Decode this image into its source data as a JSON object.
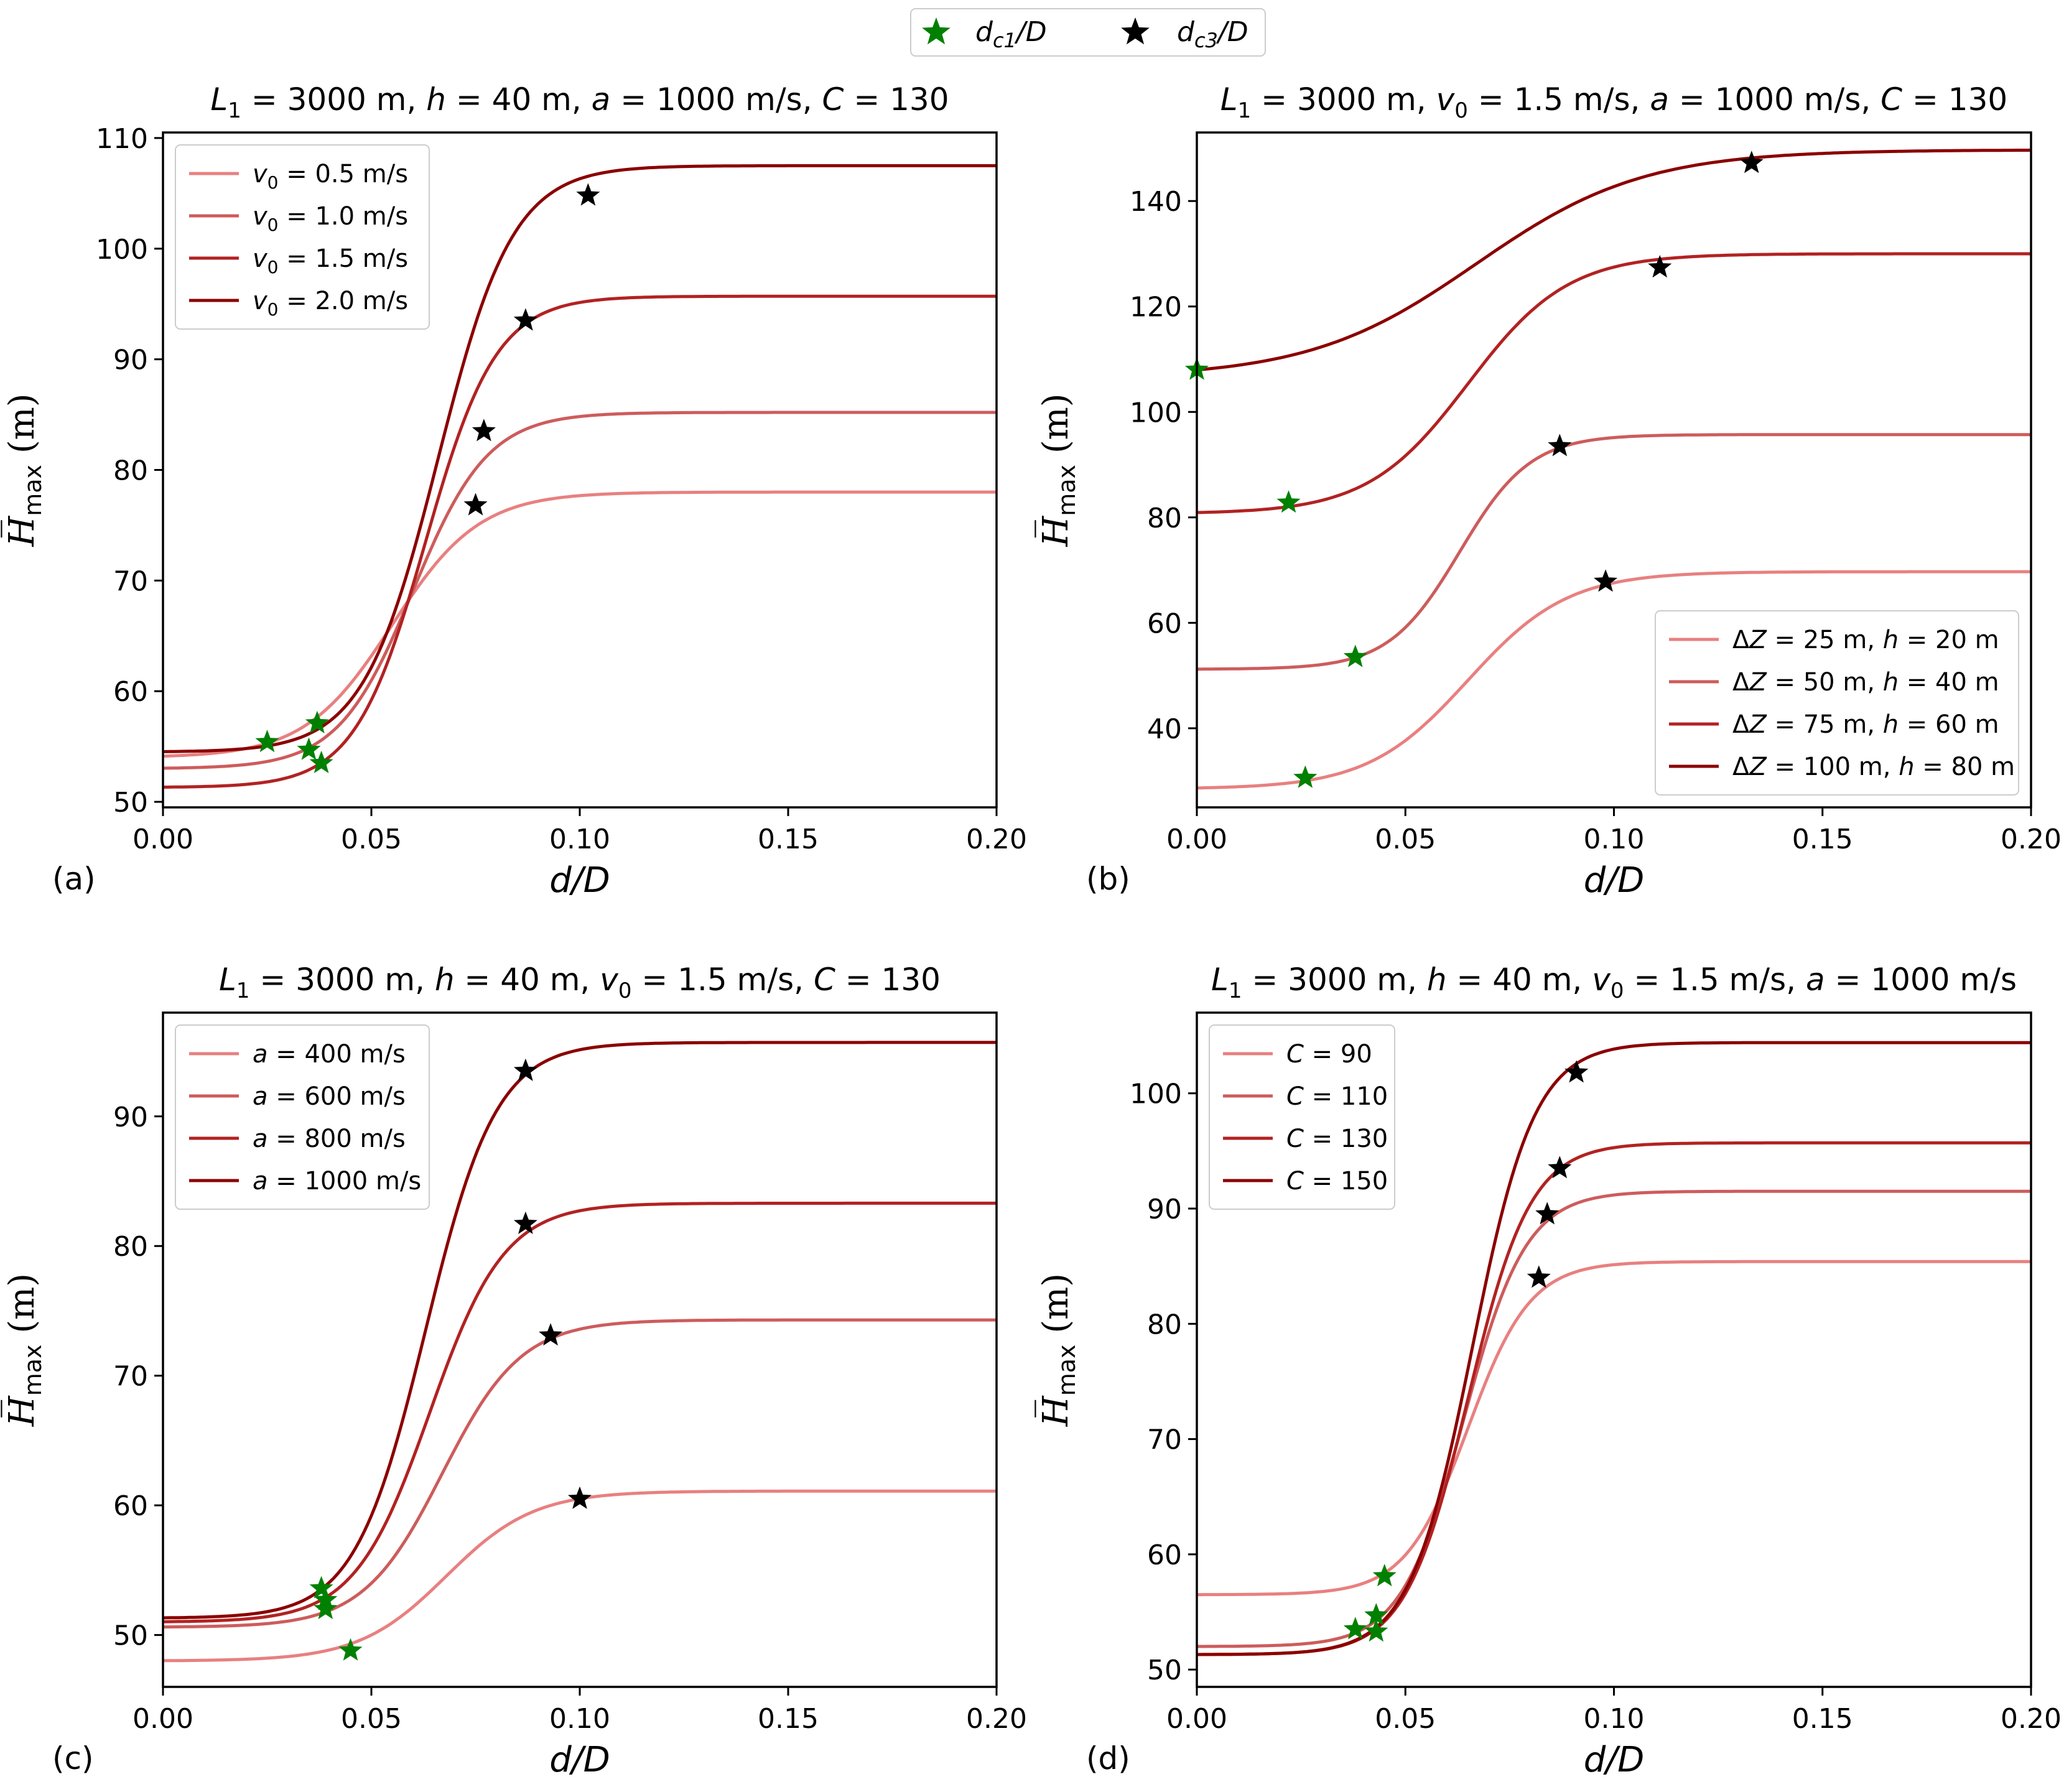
{
  "colors": {
    "c1": "#e88080",
    "c2": "#cd5c5c",
    "c3": "#b22222",
    "c4": "#8b0000",
    "dc1_marker": "#008000",
    "dc3_marker": "#000000"
  },
  "figure_legend": {
    "dc1_label": "d_c1/D",
    "dc3_label": "d_c3/D"
  },
  "chart_data": [
    {
      "type": "line",
      "panel_label": "(a)",
      "title": "L1 = 3000 m, h = 40 m, a = 1000 m/s, C = 130",
      "xlabel": "d/D",
      "ylabel": "H̅max (m)",
      "xlim": [
        0,
        0.2
      ],
      "ylim": [
        49.5,
        110.5
      ],
      "xticks": [
        0.0,
        0.05,
        0.1,
        0.15,
        0.2
      ],
      "xtick_labels": [
        "0.00",
        "0.05",
        "0.10",
        "0.15",
        "0.20"
      ],
      "yticks": [
        50,
        60,
        70,
        80,
        90,
        100,
        110
      ],
      "ytick_labels": [
        "50",
        "60",
        "70",
        "80",
        "90",
        "100",
        "110"
      ],
      "legend_position": "upper-left",
      "series": [
        {
          "name": "v0 = 0.5 m/s",
          "label_var": "v",
          "label_sub": "0",
          "label_rest": " = 0.5 m/s",
          "start": 54.0,
          "end": 78.0,
          "center": 0.055,
          "width": 0.0105,
          "dc1": [
            0.037,
            57.1
          ],
          "dc3": [
            0.075,
            76.8
          ]
        },
        {
          "name": "v0 = 1.0 m/s",
          "label_var": "v",
          "label_sub": "0",
          "label_rest": " = 1.0 m/s",
          "start": 53.0,
          "end": 85.2,
          "center": 0.06,
          "width": 0.009,
          "dc1": [
            0.035,
            54.7
          ],
          "dc3": [
            0.077,
            83.5
          ]
        },
        {
          "name": "v0 = 1.5 m/s",
          "label_var": "v",
          "label_sub": "0",
          "label_rest": " = 1.5 m/s",
          "start": 51.3,
          "end": 95.7,
          "center": 0.063,
          "width": 0.0085,
          "dc1": [
            0.038,
            53.5
          ],
          "dc3": [
            0.087,
            93.5
          ]
        },
        {
          "name": "v0 = 2.0 m/s",
          "label_var": "v",
          "label_sub": "0",
          "label_rest": " = 2.0 m/s",
          "start": 54.5,
          "end": 107.5,
          "center": 0.066,
          "width": 0.009,
          "dc1": [
            0.025,
            55.4
          ],
          "dc3": [
            0.102,
            104.8
          ]
        }
      ]
    },
    {
      "type": "line",
      "panel_label": "(b)",
      "title": "L1 = 3000 m, v0 = 1.5 m/s, a = 1000 m/s, C = 130",
      "xlabel": "d/D",
      "ylabel": "H̅max (m)",
      "xlim": [
        0,
        0.2
      ],
      "ylim": [
        25,
        153
      ],
      "xticks": [
        0.0,
        0.05,
        0.1,
        0.15,
        0.2
      ],
      "xtick_labels": [
        "0.00",
        "0.05",
        "0.10",
        "0.15",
        "0.20"
      ],
      "yticks": [
        40,
        60,
        80,
        100,
        120,
        140
      ],
      "ytick_labels": [
        "40",
        "60",
        "80",
        "100",
        "120",
        "140"
      ],
      "legend_position": "lower-right",
      "series": [
        {
          "name": "ΔZ = 25 m, h = 20 m",
          "label_var": "ΔZ",
          "label_sub": "",
          "label_rest": " = 25 m, h = 20 m",
          "start": 28.5,
          "end": 69.7,
          "center": 0.065,
          "width": 0.012,
          "dc1": [
            0.026,
            30.6
          ],
          "dc3": [
            0.098,
            67.8
          ]
        },
        {
          "name": "ΔZ = 50 m, h = 40 m",
          "label_var": "ΔZ",
          "label_sub": "",
          "label_rest": " = 50 m, h = 40 m",
          "start": 51.2,
          "end": 95.7,
          "center": 0.063,
          "width": 0.0085,
          "dc1": [
            0.038,
            53.5
          ],
          "dc3": [
            0.087,
            93.5
          ]
        },
        {
          "name": "ΔZ = 75 m, h = 60 m",
          "label_var": "ΔZ",
          "label_sub": "",
          "label_rest": " = 75 m, h = 60 m",
          "start": 80.7,
          "end": 130.0,
          "center": 0.065,
          "width": 0.012,
          "dc1": [
            0.022,
            82.8
          ],
          "dc3": [
            0.111,
            127.4
          ]
        },
        {
          "name": "ΔZ = 100 m, h = 80 m",
          "label_var": "ΔZ",
          "label_sub": "",
          "label_rest": " = 100 m, h = 80 m",
          "start": 106.5,
          "end": 149.7,
          "center": 0.067,
          "width": 0.02,
          "dc1": [
            0.0,
            108.0
          ],
          "dc3": [
            0.133,
            147.2
          ]
        }
      ]
    },
    {
      "type": "line",
      "panel_label": "(c)",
      "title": "L1 = 3000 m, h = 40 m, v0 = 1.5 m/s, C = 130",
      "xlabel": "d/D",
      "ylabel": "H̅max (m)",
      "xlim": [
        0,
        0.2
      ],
      "ylim": [
        46.0,
        98.0
      ],
      "xticks": [
        0.0,
        0.05,
        0.1,
        0.15,
        0.2
      ],
      "xtick_labels": [
        "0.00",
        "0.05",
        "0.10",
        "0.15",
        "0.20"
      ],
      "yticks": [
        50,
        60,
        70,
        80,
        90
      ],
      "ytick_labels": [
        "50",
        "60",
        "70",
        "80",
        "90"
      ],
      "legend_position": "upper-left",
      "series": [
        {
          "name": "a = 400 m/s",
          "label_var": "a",
          "label_sub": "",
          "label_rest": " = 400 m/s",
          "start": 48.0,
          "end": 61.1,
          "center": 0.068,
          "width": 0.0105,
          "dc1": [
            0.045,
            48.8
          ],
          "dc3": [
            0.1,
            60.5
          ]
        },
        {
          "name": "a = 600 m/s",
          "label_var": "a",
          "label_sub": "",
          "label_rest": " = 600 m/s",
          "start": 50.6,
          "end": 74.3,
          "center": 0.067,
          "width": 0.0095,
          "dc1": [
            0.039,
            52.0
          ],
          "dc3": [
            0.093,
            73.1
          ]
        },
        {
          "name": "a = 800 m/s",
          "label_var": "a",
          "label_sub": "",
          "label_rest": " = 800 m/s",
          "start": 51.0,
          "end": 83.3,
          "center": 0.064,
          "width": 0.009,
          "dc1": [
            0.039,
            52.7
          ],
          "dc3": [
            0.087,
            81.7
          ]
        },
        {
          "name": "a = 1000 m/s",
          "label_var": "a",
          "label_sub": "",
          "label_rest": " = 1000 m/s",
          "start": 51.3,
          "end": 95.7,
          "center": 0.063,
          "width": 0.0085,
          "dc1": [
            0.038,
            53.6
          ],
          "dc3": [
            0.087,
            93.5
          ]
        }
      ]
    },
    {
      "type": "line",
      "panel_label": "(d)",
      "title": "L1 = 3000 m, h = 40 m, v0 = 1.5 m/s, a = 1000 m/s",
      "xlabel": "d/D",
      "ylabel": "H̅max (m)",
      "xlim": [
        0,
        0.2
      ],
      "ylim": [
        48.5,
        107.0
      ],
      "xticks": [
        0.0,
        0.05,
        0.1,
        0.15,
        0.2
      ],
      "xtick_labels": [
        "0.00",
        "0.05",
        "0.10",
        "0.15",
        "0.20"
      ],
      "yticks": [
        50,
        60,
        70,
        80,
        90,
        100
      ],
      "ytick_labels": [
        "50",
        "60",
        "70",
        "80",
        "90",
        "100"
      ],
      "legend_position": "upper-left",
      "series": [
        {
          "name": "C = 90",
          "label_var": "C",
          "label_sub": "",
          "label_rest": " = 90",
          "start": 56.5,
          "end": 85.4,
          "center": 0.065,
          "width": 0.0075,
          "dc1": [
            0.045,
            58.1
          ],
          "dc3": [
            0.082,
            84.0
          ]
        },
        {
          "name": "C = 110",
          "label_var": "C",
          "label_sub": "",
          "label_rest": " = 110",
          "start": 52.0,
          "end": 91.5,
          "center": 0.064,
          "width": 0.0075,
          "dc1": [
            0.043,
            54.7
          ],
          "dc3": [
            0.084,
            89.5
          ]
        },
        {
          "name": "C = 130",
          "label_var": "C",
          "label_sub": "",
          "label_rest": " = 130",
          "start": 51.3,
          "end": 95.7,
          "center": 0.065,
          "width": 0.0075,
          "dc1": [
            0.038,
            53.5
          ],
          "dc3": [
            0.087,
            93.5
          ]
        },
        {
          "name": "C = 150",
          "label_var": "C",
          "label_sub": "",
          "label_rest": " = 150",
          "start": 51.3,
          "end": 104.4,
          "center": 0.066,
          "width": 0.0075,
          "dc1": [
            0.043,
            53.3
          ],
          "dc3": [
            0.091,
            101.8
          ]
        }
      ]
    }
  ]
}
